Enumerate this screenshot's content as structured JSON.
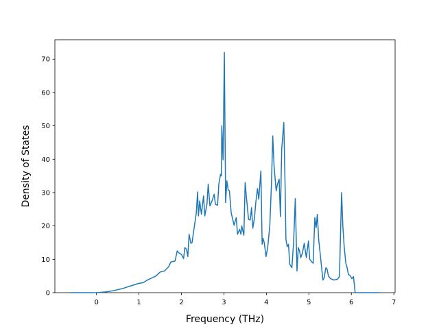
{
  "chart_data": {
    "type": "line",
    "xlabel": "Frequency (THz)",
    "ylabel": "Density of States",
    "xlim": [
      -0.98,
      7.03
    ],
    "ylim": [
      0,
      75.8
    ],
    "xticks": [
      0,
      1,
      2,
      3,
      4,
      5,
      6,
      7
    ],
    "yticks": [
      0,
      10,
      20,
      30,
      40,
      50,
      60,
      70
    ],
    "series": [
      {
        "color": "#1f77b4",
        "x": [
          -0.63,
          0,
          0.2,
          0.4,
          0.6,
          0.8,
          1.0,
          1.1,
          1.2,
          1.4,
          1.5,
          1.6,
          1.7,
          1.75,
          1.85,
          1.9,
          1.95,
          2.0,
          2.05,
          2.08,
          2.12,
          2.15,
          2.18,
          2.22,
          2.25,
          2.3,
          2.35,
          2.38,
          2.4,
          2.43,
          2.47,
          2.52,
          2.55,
          2.6,
          2.63,
          2.67,
          2.72,
          2.77,
          2.8,
          2.85,
          2.88,
          2.92,
          2.94,
          2.95,
          2.98,
          3.01,
          3.04,
          3.07,
          3.1,
          3.13,
          3.17,
          3.24,
          3.29,
          3.32,
          3.37,
          3.4,
          3.42,
          3.47,
          3.5,
          3.53,
          3.58,
          3.62,
          3.65,
          3.68,
          3.72,
          3.75,
          3.79,
          3.82,
          3.87,
          3.9,
          3.92,
          3.95,
          3.99,
          4.03,
          4.08,
          4.12,
          4.15,
          4.18,
          4.23,
          4.26,
          4.3,
          4.33,
          4.36,
          4.41,
          4.44,
          4.46,
          4.49,
          4.52,
          4.55,
          4.6,
          4.64,
          4.68,
          4.72,
          4.75,
          4.78,
          4.81,
          4.85,
          4.89,
          4.94,
          4.99,
          5.02,
          5.07,
          5.1,
          5.14,
          5.17,
          5.2,
          5.23,
          5.28,
          5.33,
          5.36,
          5.4,
          5.43,
          5.46,
          5.51,
          5.59,
          5.67,
          5.72,
          5.77,
          5.8,
          5.83,
          5.87,
          5.9,
          5.93,
          5.98,
          6.01,
          6.05,
          6.09,
          6.67
        ],
        "values": [
          0,
          0,
          0.2,
          0.6,
          1.2,
          2.0,
          2.8,
          3.0,
          3.8,
          5.0,
          6.2,
          6.5,
          7.8,
          9.2,
          9.5,
          12.5,
          11.8,
          11.5,
          10.2,
          13.5,
          13.0,
          10.8,
          17.5,
          14.8,
          15.0,
          19.5,
          24,
          30.2,
          23,
          27.5,
          23.5,
          29,
          23,
          26.5,
          32.5,
          26,
          27.5,
          29.5,
          26.5,
          26.2,
          32.5,
          35.5,
          35,
          50,
          39.8,
          72,
          27,
          33.5,
          30.8,
          30.5,
          24,
          20.2,
          22.5,
          17.5,
          19,
          17.5,
          20,
          17.2,
          33,
          28.5,
          22,
          21.8,
          25.5,
          19.3,
          22.5,
          27,
          31.2,
          28,
          36.5,
          14.5,
          16.3,
          15,
          10.8,
          13.5,
          20,
          33,
          47,
          38,
          30.5,
          32.5,
          34,
          22.8,
          43,
          51,
          32,
          16,
          13.8,
          14.5,
          8.5,
          7.5,
          15,
          28.2,
          6.5,
          13.5,
          12.5,
          10.5,
          12,
          14.8,
          10.5,
          15.5,
          10,
          9.2,
          8.8,
          22.5,
          19.5,
          23.5,
          16,
          10,
          3.8,
          4.5,
          7.5,
          7,
          5,
          4.2,
          3.8,
          4,
          4.8,
          30,
          20,
          14,
          8.8,
          7.5,
          5.5,
          5,
          4.2,
          4.8,
          0,
          0
        ]
      }
    ]
  }
}
